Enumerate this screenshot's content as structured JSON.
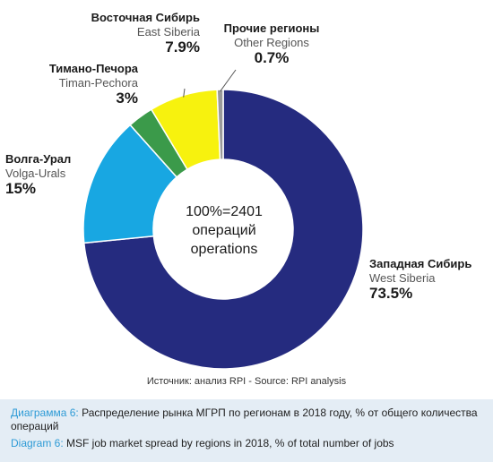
{
  "chart_data": {
    "type": "pie",
    "center_label": [
      "100%=2401",
      "операций",
      "operations"
    ],
    "slices": [
      {
        "label_ru": "Западная Сибирь",
        "label_en": "West Siberia",
        "value": 73.5,
        "value_label": "73.5%",
        "color": "#252b7f"
      },
      {
        "label_ru": "Волга-Урал",
        "label_en": "Volga-Urals",
        "value": 15,
        "value_label": "15%",
        "color": "#18a7e2"
      },
      {
        "label_ru": "Тимано-Печора",
        "label_en": "Timan-Pechora",
        "value": 3,
        "value_label": "3%",
        "color": "#3b9a4a"
      },
      {
        "label_ru": "Восточная Сибирь",
        "label_en": "East Siberia",
        "value": 7.9,
        "value_label": "7.9%",
        "color": "#f7f20e"
      },
      {
        "label_ru": "Прочие регионы",
        "label_en": "Other Regions",
        "value": 0.7,
        "value_label": "0.7%",
        "color": "#9a9a9a"
      }
    ]
  },
  "source": "Источник: анализ RPI - Source: RPI analysis",
  "caption": {
    "ru_lead": "Диаграмма 6:",
    "ru_text": " Распределение рынка МГРП по регионам в 2018 году, % от общего количества операций",
    "en_lead": "Diagram 6:",
    "en_text": " MSF job market spread by regions in 2018, % of total number of jobs"
  }
}
